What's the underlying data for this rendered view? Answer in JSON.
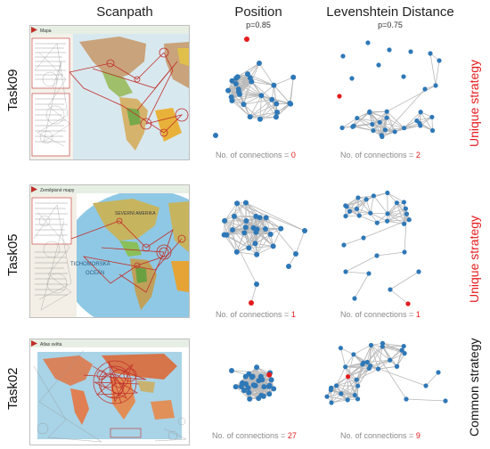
{
  "columns": {
    "scanpath": "Scanpath",
    "position": "Position",
    "position_p": "p=0.85",
    "levenshtein": "Levenshtein Distance",
    "levenshtein_p": "p=0.75"
  },
  "connections_label": "No. of connections =",
  "rows": [
    {
      "task": "Task09",
      "strategy": "Unique strategy",
      "strategy_color": "#e41a1c",
      "map_title": "Mapa",
      "position_connections": "0",
      "levenshtein_connections": "2"
    },
    {
      "task": "Task05",
      "strategy": "Unique strategy",
      "strategy_color": "#e41a1c",
      "map_title": "Zeměpisné mapy",
      "map_labels": [
        "SEVERNÍ AMERIKA",
        "TICHOMORSKÁ",
        "OCEÁN"
      ],
      "position_connections": "1",
      "levenshtein_connections": "1"
    },
    {
      "task": "Task02",
      "strategy": "Common strategy",
      "strategy_color": "#111111",
      "map_title": "Atlas světa",
      "position_connections": "27",
      "levenshtein_connections": "9"
    }
  ],
  "colors": {
    "node": "#2e78b7",
    "highlight_node": "#e41a1c",
    "edge": "#b9b9b9",
    "scanpath": "#c0302a"
  }
}
